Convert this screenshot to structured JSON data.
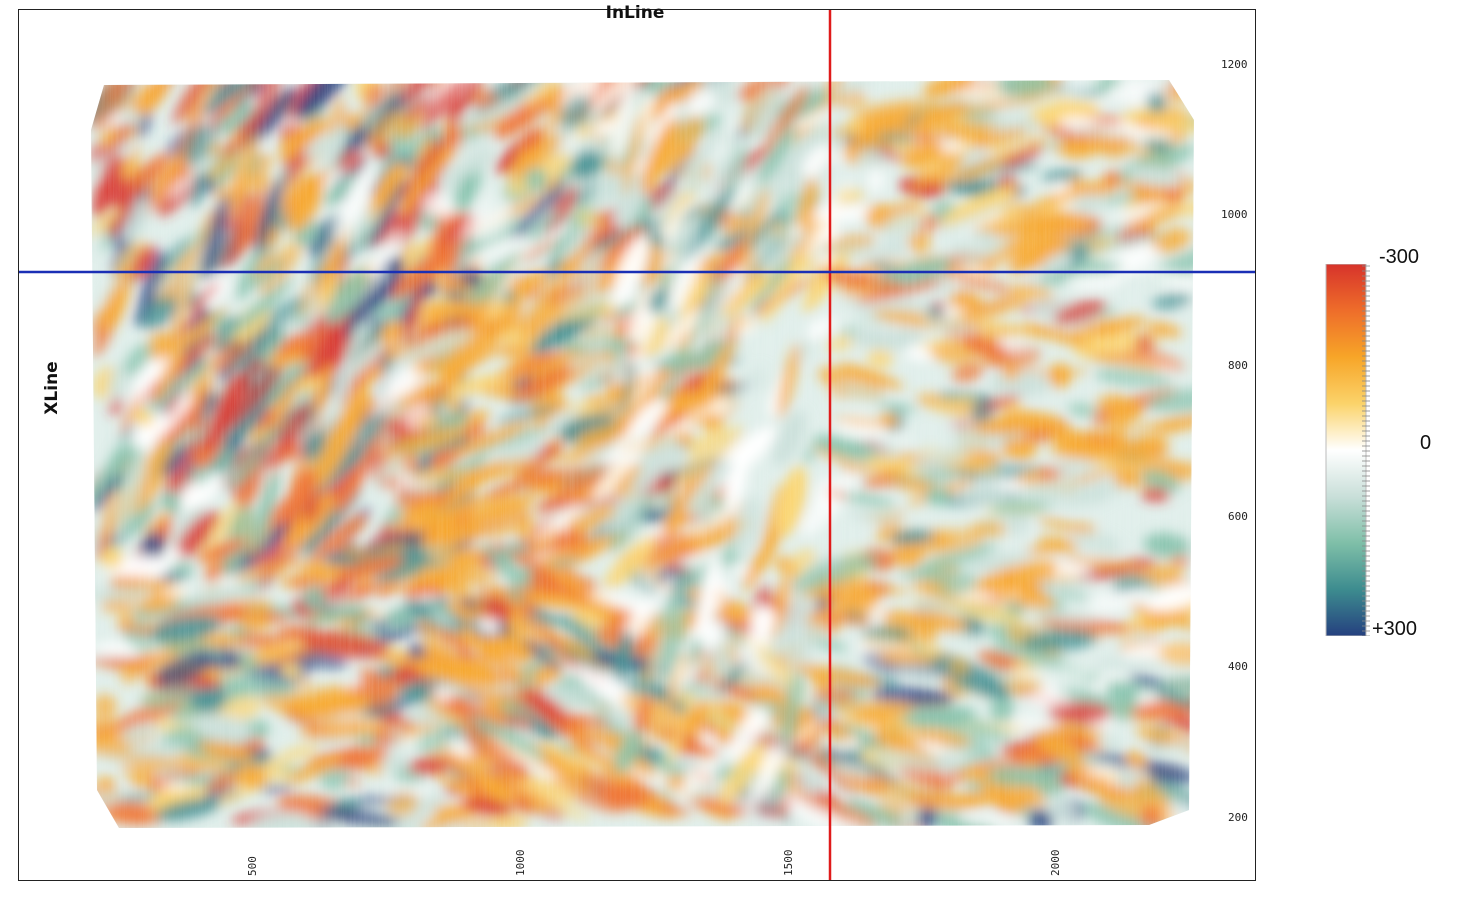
{
  "axes": {
    "inline_title": "InLine",
    "xline_title": "XLine",
    "xline_ticks": [
      "1200",
      "1000",
      "800",
      "600",
      "400",
      "200"
    ],
    "inline_ticks": [
      "500",
      "1000",
      "1500",
      "2000"
    ]
  },
  "colorbar": {
    "top_label": "-300",
    "mid_label": "0",
    "bottom_label": "+300",
    "stops": [
      "#d7332b",
      "#ee6d2a",
      "#f7a528",
      "#fbd36a",
      "#ffffff",
      "#c9dfd9",
      "#7fbfa8",
      "#3d8c8f",
      "#25407f"
    ]
  },
  "colors": {
    "inline_marker": "#e01a1a",
    "xline_marker": "#1a2fb5"
  }
}
